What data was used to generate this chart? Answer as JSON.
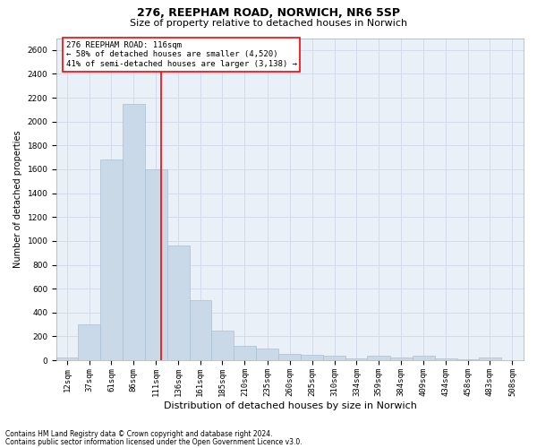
{
  "title1": "276, REEPHAM ROAD, NORWICH, NR6 5SP",
  "title2": "Size of property relative to detached houses in Norwich",
  "xlabel": "Distribution of detached houses by size in Norwich",
  "ylabel": "Number of detached properties",
  "footnote1": "Contains HM Land Registry data © Crown copyright and database right 2024.",
  "footnote2": "Contains public sector information licensed under the Open Government Licence v3.0.",
  "annotation_line1": "276 REEPHAM ROAD: 116sqm",
  "annotation_line2": "← 58% of detached houses are smaller (4,520)",
  "annotation_line3": "41% of semi-detached houses are larger (3,138) →",
  "bar_color": "#c9d9e8",
  "bar_edge_color": "#a8c0d4",
  "vline_color": "red",
  "vline_x": 116,
  "categories": [
    "12sqm",
    "37sqm",
    "61sqm",
    "86sqm",
    "111sqm",
    "136sqm",
    "161sqm",
    "185sqm",
    "210sqm",
    "235sqm",
    "260sqm",
    "285sqm",
    "310sqm",
    "334sqm",
    "359sqm",
    "384sqm",
    "409sqm",
    "434sqm",
    "458sqm",
    "483sqm",
    "508sqm"
  ],
  "bin_edges": [
    0,
    24,
    49,
    73,
    98,
    123,
    148,
    172,
    197,
    222,
    247,
    272,
    297,
    322,
    346,
    371,
    396,
    421,
    446,
    470,
    495,
    520
  ],
  "values": [
    25,
    300,
    1680,
    2150,
    1600,
    960,
    505,
    250,
    120,
    100,
    50,
    45,
    35,
    15,
    35,
    20,
    35,
    15,
    5,
    25,
    0
  ],
  "ylim": [
    0,
    2700
  ],
  "yticks": [
    0,
    200,
    400,
    600,
    800,
    1000,
    1200,
    1400,
    1600,
    1800,
    2000,
    2200,
    2400,
    2600
  ],
  "grid_color": "#d0d8e8",
  "bg_color": "#eaf0f8",
  "title1_fontsize": 9,
  "title2_fontsize": 8,
  "xlabel_fontsize": 8,
  "ylabel_fontsize": 7,
  "tick_fontsize": 6.5,
  "annot_fontsize": 6.5,
  "footnote_fontsize": 5.5
}
